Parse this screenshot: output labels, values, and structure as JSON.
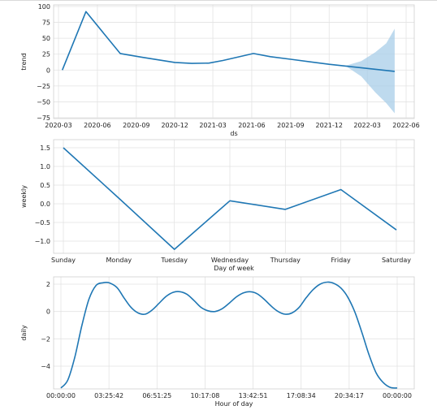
{
  "chart_data": [
    {
      "type": "area",
      "title": "",
      "xlabel": "ds",
      "ylabel": "trend",
      "x_ticks": [
        "2020-03",
        "2020-06",
        "2020-09",
        "2020-12",
        "2021-03",
        "2021-06",
        "2021-09",
        "2021-12",
        "2022-03",
        "2022-06"
      ],
      "ylim": [
        -75,
        100
      ],
      "y_ticks": [
        "100",
        "75",
        "50",
        "25",
        "0",
        "−25",
        "−50",
        "−75"
      ],
      "y_tick_values": [
        100,
        75,
        50,
        25,
        0,
        -25,
        -50,
        -75
      ],
      "grid": true,
      "series": [
        {
          "values": [
            {
              "x": "2020-03-10",
              "y": 0
            },
            {
              "x": "2020-05-05",
              "y": 92
            },
            {
              "x": "2020-07-25",
              "y": 26
            },
            {
              "x": "2020-09-15",
              "y": 20
            },
            {
              "x": "2020-12-01",
              "y": 12
            },
            {
              "x": "2021-01-10",
              "y": 10.5
            },
            {
              "x": "2021-02-20",
              "y": 11
            },
            {
              "x": "2021-03-25",
              "y": 15
            },
            {
              "x": "2021-06-05",
              "y": 26
            },
            {
              "x": "2021-07-15",
              "y": 21
            },
            {
              "x": "2021-09-01",
              "y": 17
            },
            {
              "x": "2021-12-01",
              "y": 9
            },
            {
              "x": "2022-05-05",
              "y": -2
            }
          ]
        }
      ],
      "uncertainty_band": [
        {
          "x": "2022-01-10",
          "lower": 6,
          "upper": 7
        },
        {
          "x": "2022-02-15",
          "lower": -10,
          "upper": 14
        },
        {
          "x": "2022-03-20",
          "lower": -35,
          "upper": 28
        },
        {
          "x": "2022-04-15",
          "lower": -52,
          "upper": 42
        },
        {
          "x": "2022-05-05",
          "lower": -68,
          "upper": 65
        }
      ],
      "colors": {
        "line": "#1f77b4",
        "band": "#a8cde8"
      }
    },
    {
      "type": "line",
      "title": "",
      "xlabel": "Day of week",
      "ylabel": "weekly",
      "categories": [
        "Sunday",
        "Monday",
        "Tuesday",
        "Wednesday",
        "Thursday",
        "Friday",
        "Saturday"
      ],
      "ylim": [
        -1.25,
        1.6
      ],
      "y_ticks": [
        "1.5",
        "1.0",
        "0.5",
        "0.0",
        "−0.5",
        "−1.0"
      ],
      "y_tick_values": [
        1.5,
        1.0,
        0.5,
        0.0,
        -0.5,
        -1.0
      ],
      "grid": true,
      "series": [
        {
          "values": [
            1.5,
            0.15,
            -1.22,
            0.08,
            -0.15,
            0.38,
            -0.7
          ]
        }
      ],
      "colors": {
        "line": "#1f77b4"
      }
    },
    {
      "type": "line",
      "title": "",
      "xlabel": "Hour of day",
      "ylabel": "daily",
      "x_ticks": [
        "00:00:00",
        "03:25:42",
        "06:51:25",
        "10:17:08",
        "13:42:51",
        "17:08:34",
        "20:34:17",
        "00:00:00"
      ],
      "ylim": [
        -5.8,
        2.5
      ],
      "y_ticks": [
        "2",
        "0",
        "−2",
        "−4"
      ],
      "y_tick_values": [
        2,
        0,
        -2,
        -4
      ],
      "grid": true,
      "series": [
        {
          "values": [
            {
              "x": 0,
              "y": -5.6
            },
            {
              "x": 0.5,
              "y": -5.0
            },
            {
              "x": 1.0,
              "y": -3.3
            },
            {
              "x": 1.5,
              "y": -1.0
            },
            {
              "x": 2.0,
              "y": 0.9
            },
            {
              "x": 2.5,
              "y": 1.9
            },
            {
              "x": 3.0,
              "y": 2.1
            },
            {
              "x": 3.43,
              "y": 2.1
            },
            {
              "x": 4.0,
              "y": 1.75
            },
            {
              "x": 4.5,
              "y": 1.0
            },
            {
              "x": 5.0,
              "y": 0.3
            },
            {
              "x": 5.5,
              "y": -0.1
            },
            {
              "x": 6.0,
              "y": -0.2
            },
            {
              "x": 6.5,
              "y": 0.1
            },
            {
              "x": 7.0,
              "y": 0.6
            },
            {
              "x": 7.5,
              "y": 1.1
            },
            {
              "x": 8.0,
              "y": 1.4
            },
            {
              "x": 8.5,
              "y": 1.45
            },
            {
              "x": 9.0,
              "y": 1.25
            },
            {
              "x": 9.5,
              "y": 0.8
            },
            {
              "x": 10.0,
              "y": 0.3
            },
            {
              "x": 10.5,
              "y": 0.05
            },
            {
              "x": 11.0,
              "y": 0.0
            },
            {
              "x": 11.5,
              "y": 0.2
            },
            {
              "x": 12.0,
              "y": 0.6
            },
            {
              "x": 12.5,
              "y": 1.05
            },
            {
              "x": 13.0,
              "y": 1.35
            },
            {
              "x": 13.5,
              "y": 1.45
            },
            {
              "x": 14.0,
              "y": 1.3
            },
            {
              "x": 14.5,
              "y": 0.9
            },
            {
              "x": 15.0,
              "y": 0.4
            },
            {
              "x": 15.5,
              "y": 0.0
            },
            {
              "x": 16.0,
              "y": -0.2
            },
            {
              "x": 16.5,
              "y": -0.1
            },
            {
              "x": 17.0,
              "y": 0.3
            },
            {
              "x": 17.5,
              "y": 1.0
            },
            {
              "x": 18.0,
              "y": 1.6
            },
            {
              "x": 18.5,
              "y": 2.0
            },
            {
              "x": 19.0,
              "y": 2.15
            },
            {
              "x": 19.5,
              "y": 2.05
            },
            {
              "x": 20.0,
              "y": 1.7
            },
            {
              "x": 20.5,
              "y": 1.0
            },
            {
              "x": 21.0,
              "y": -0.1
            },
            {
              "x": 21.5,
              "y": -1.6
            },
            {
              "x": 22.0,
              "y": -3.2
            },
            {
              "x": 22.5,
              "y": -4.5
            },
            {
              "x": 23.0,
              "y": -5.2
            },
            {
              "x": 23.5,
              "y": -5.55
            },
            {
              "x": 24.0,
              "y": -5.6
            }
          ]
        }
      ],
      "colors": {
        "line": "#1f77b4"
      }
    }
  ]
}
